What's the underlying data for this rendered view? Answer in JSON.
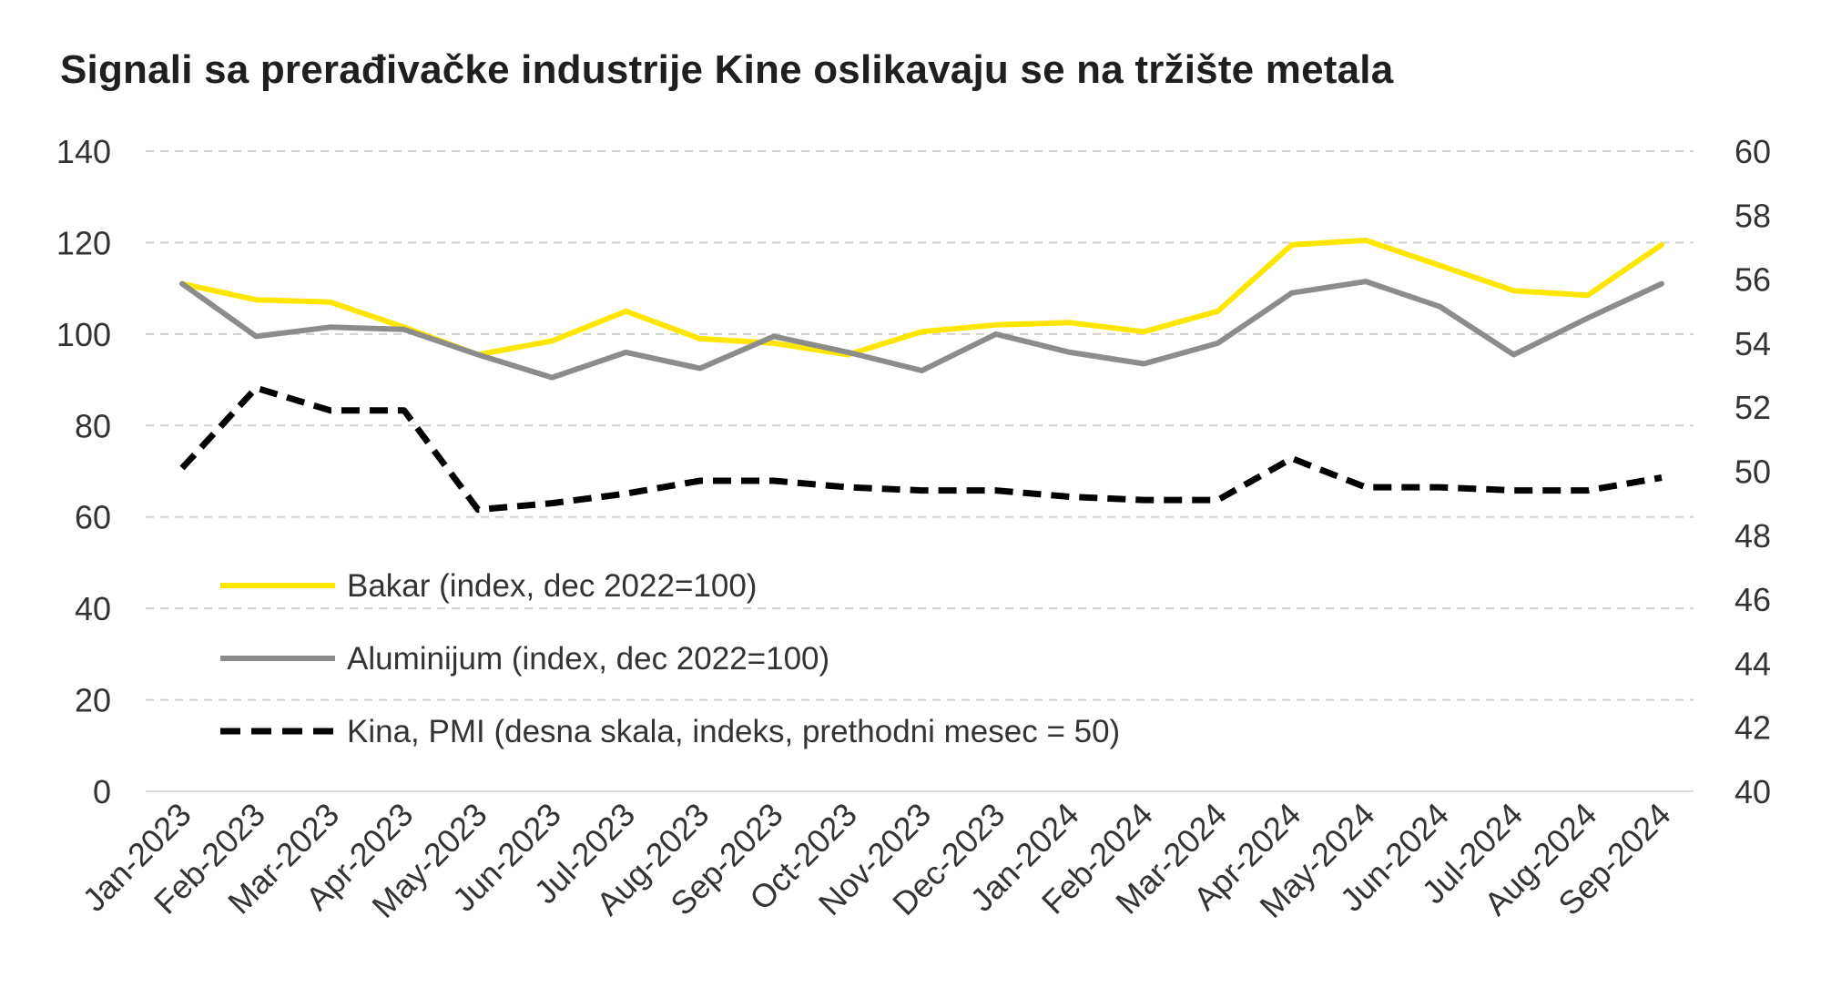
{
  "chart_data": {
    "type": "line",
    "title": "Signali sa prerađivačke industrije Kine oslikavaju se na tržište metala",
    "categories": [
      "Jan-2023",
      "Feb-2023",
      "Mar-2023",
      "Apr-2023",
      "May-2023",
      "Jun-2023",
      "Jul-2023",
      "Aug-2023",
      "Sep-2023",
      "Oct-2023",
      "Nov-2023",
      "Dec-2023",
      "Jan-2024",
      "Feb-2024",
      "Mar-2024",
      "Apr-2024",
      "May-2024",
      "Jun-2024",
      "Jul-2024",
      "Aug-2024",
      "Sep-2024"
    ],
    "left_axis": {
      "ylim": [
        0,
        140
      ],
      "ticks": [
        0,
        20,
        40,
        60,
        80,
        100,
        120,
        140
      ]
    },
    "right_axis": {
      "ylim": [
        40,
        60
      ],
      "ticks": [
        40,
        42,
        44,
        46,
        48,
        50,
        52,
        54,
        56,
        58,
        60
      ]
    },
    "grid": "horizontal-dashed",
    "series": [
      {
        "name": "Bakar (index, dec 2022=100)",
        "axis": "left",
        "color": "#FFE600",
        "style": "solid",
        "values": [
          111,
          107.5,
          107,
          101.5,
          95.5,
          98.5,
          105,
          99,
          98,
          95.5,
          100.5,
          102,
          102.5,
          100.5,
          105,
          119.5,
          120.5,
          115,
          109.5,
          108.5,
          119.5
        ]
      },
      {
        "name": "Aluminijum (index, dec 2022=100)",
        "axis": "left",
        "color": "#8C8C8C",
        "style": "solid",
        "values": [
          111,
          99.5,
          101.5,
          101,
          95.5,
          90.5,
          96,
          92.5,
          99.5,
          96,
          92,
          100,
          96,
          93.5,
          98,
          109,
          111.5,
          106,
          95.5,
          103.5,
          111
        ]
      },
      {
        "name": "Kina, PMI (desna skala, indeks, prethodni mesec = 50)",
        "axis": "right",
        "color": "#000000",
        "style": "dashed",
        "values": [
          50.1,
          52.6,
          51.9,
          51.9,
          48.8,
          49.0,
          49.3,
          49.7,
          49.7,
          49.5,
          49.4,
          49.4,
          49.2,
          49.1,
          49.1,
          50.4,
          49.5,
          49.5,
          49.4,
          49.4,
          49.8
        ]
      }
    ],
    "legend": {
      "placement": "lower-left-inside"
    }
  }
}
